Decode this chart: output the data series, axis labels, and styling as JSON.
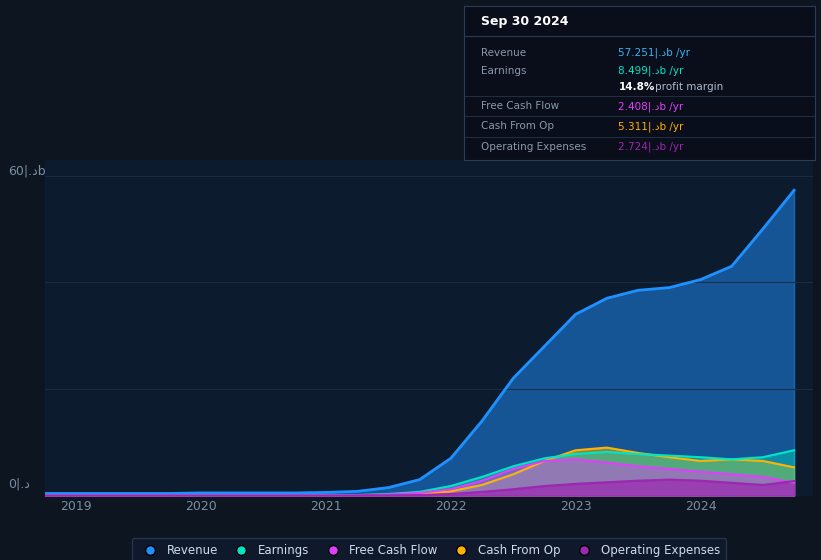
{
  "background_color": "#0d1520",
  "chart_bg_color": "#0d1b2e",
  "y_label_top": "60|.دb",
  "y_label_bottom": "0|.د",
  "years_ticks": [
    2019,
    2020,
    2021,
    2022,
    2023,
    2024
  ],
  "info_box": {
    "title": "Sep 30 2024",
    "revenue_label": "Revenue",
    "revenue_value": "57.251|.دb /yr",
    "revenue_color": "#3ab4f2",
    "earnings_label": "Earnings",
    "earnings_value": "8.499|.دb /yr",
    "earnings_color": "#00e5c3",
    "margin_text": "14.8% profit margin",
    "fcf_label": "Free Cash Flow",
    "fcf_value": "2.408|.دb /yr",
    "fcf_color": "#e040fb",
    "cashop_label": "Cash From Op",
    "cashop_value": "5.311|.دb /yr",
    "cashop_color": "#ffb300",
    "opex_label": "Operating Expenses",
    "opex_value": "2.724|.دb /yr",
    "opex_color": "#9c27b0"
  },
  "revenue_color": "#1e90ff",
  "earnings_color": "#00e5c3",
  "fcf_color": "#e040fb",
  "cashop_color": "#ffb300",
  "opex_color": "#9c27b0",
  "x": [
    2018.75,
    2019.0,
    2019.25,
    2019.5,
    2019.75,
    2020.0,
    2020.25,
    2020.5,
    2020.75,
    2021.0,
    2021.25,
    2021.5,
    2021.75,
    2022.0,
    2022.25,
    2022.5,
    2022.75,
    2023.0,
    2023.25,
    2023.5,
    2023.75,
    2024.0,
    2024.25,
    2024.5,
    2024.75
  ],
  "revenue": [
    0.4,
    0.4,
    0.4,
    0.4,
    0.4,
    0.5,
    0.5,
    0.5,
    0.5,
    0.6,
    0.8,
    1.5,
    3.0,
    7.0,
    14.0,
    22.0,
    28.0,
    34.0,
    37.0,
    38.5,
    39.0,
    40.5,
    43.0,
    50.0,
    57.25
  ],
  "earnings": [
    0.05,
    0.05,
    0.05,
    0.05,
    0.05,
    0.05,
    0.05,
    0.05,
    0.05,
    0.05,
    0.1,
    0.3,
    0.7,
    1.8,
    3.5,
    5.5,
    7.0,
    7.8,
    8.2,
    7.8,
    7.5,
    7.2,
    6.8,
    7.2,
    8.5
  ],
  "fcf": [
    0.02,
    0.02,
    0.02,
    0.02,
    0.02,
    0.02,
    0.02,
    0.02,
    0.02,
    0.02,
    0.05,
    0.2,
    0.5,
    1.2,
    2.8,
    5.0,
    6.5,
    6.8,
    6.2,
    5.5,
    5.0,
    4.5,
    4.0,
    3.5,
    2.4
  ],
  "cashop": [
    0.01,
    0.01,
    0.01,
    0.01,
    0.01,
    0.01,
    0.01,
    0.01,
    0.01,
    0.01,
    0.03,
    0.1,
    0.3,
    0.8,
    2.0,
    4.0,
    6.5,
    8.5,
    9.0,
    8.0,
    7.2,
    6.5,
    6.8,
    6.5,
    5.3
  ],
  "opex": [
    0.008,
    0.008,
    0.008,
    0.008,
    0.008,
    0.008,
    0.008,
    0.008,
    0.008,
    0.008,
    0.01,
    0.04,
    0.1,
    0.3,
    0.7,
    1.2,
    1.8,
    2.2,
    2.5,
    2.8,
    3.0,
    2.8,
    2.4,
    2.0,
    2.72
  ],
  "ylim": [
    0,
    63
  ],
  "xlim": [
    2018.75,
    2024.9
  ],
  "legend_items": [
    {
      "label": "Revenue",
      "color": "#1e90ff"
    },
    {
      "label": "Earnings",
      "color": "#00e5c3"
    },
    {
      "label": "Free Cash Flow",
      "color": "#e040fb"
    },
    {
      "label": "Cash From Op",
      "color": "#ffb300"
    },
    {
      "label": "Operating Expenses",
      "color": "#9c27b0"
    }
  ]
}
